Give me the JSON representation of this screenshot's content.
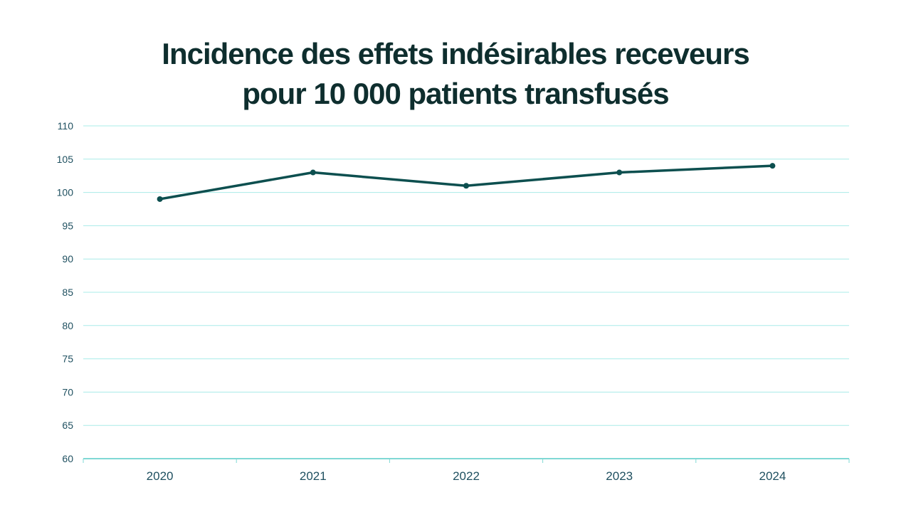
{
  "chart_data": {
    "type": "line",
    "title_lines": [
      "Incidence des effets indésirables receveurs",
      "pour 10 000 patients transfusés"
    ],
    "xlabel": "",
    "ylabel": "",
    "categories": [
      "2020",
      "2021",
      "2022",
      "2023",
      "2024"
    ],
    "series": [
      {
        "values": [
          99,
          103,
          101,
          103,
          104
        ]
      }
    ],
    "ylim": [
      60,
      110
    ],
    "yticks": [
      60,
      65,
      70,
      75,
      80,
      85,
      90,
      95,
      100,
      105,
      110
    ],
    "grid": true,
    "legend": "none",
    "colors": {
      "line": "#0d4f4f",
      "grid": "#a8ece8",
      "axis": "#7fd8d4",
      "tick_text": "#1f5060",
      "title": "#0e2e2e"
    }
  }
}
